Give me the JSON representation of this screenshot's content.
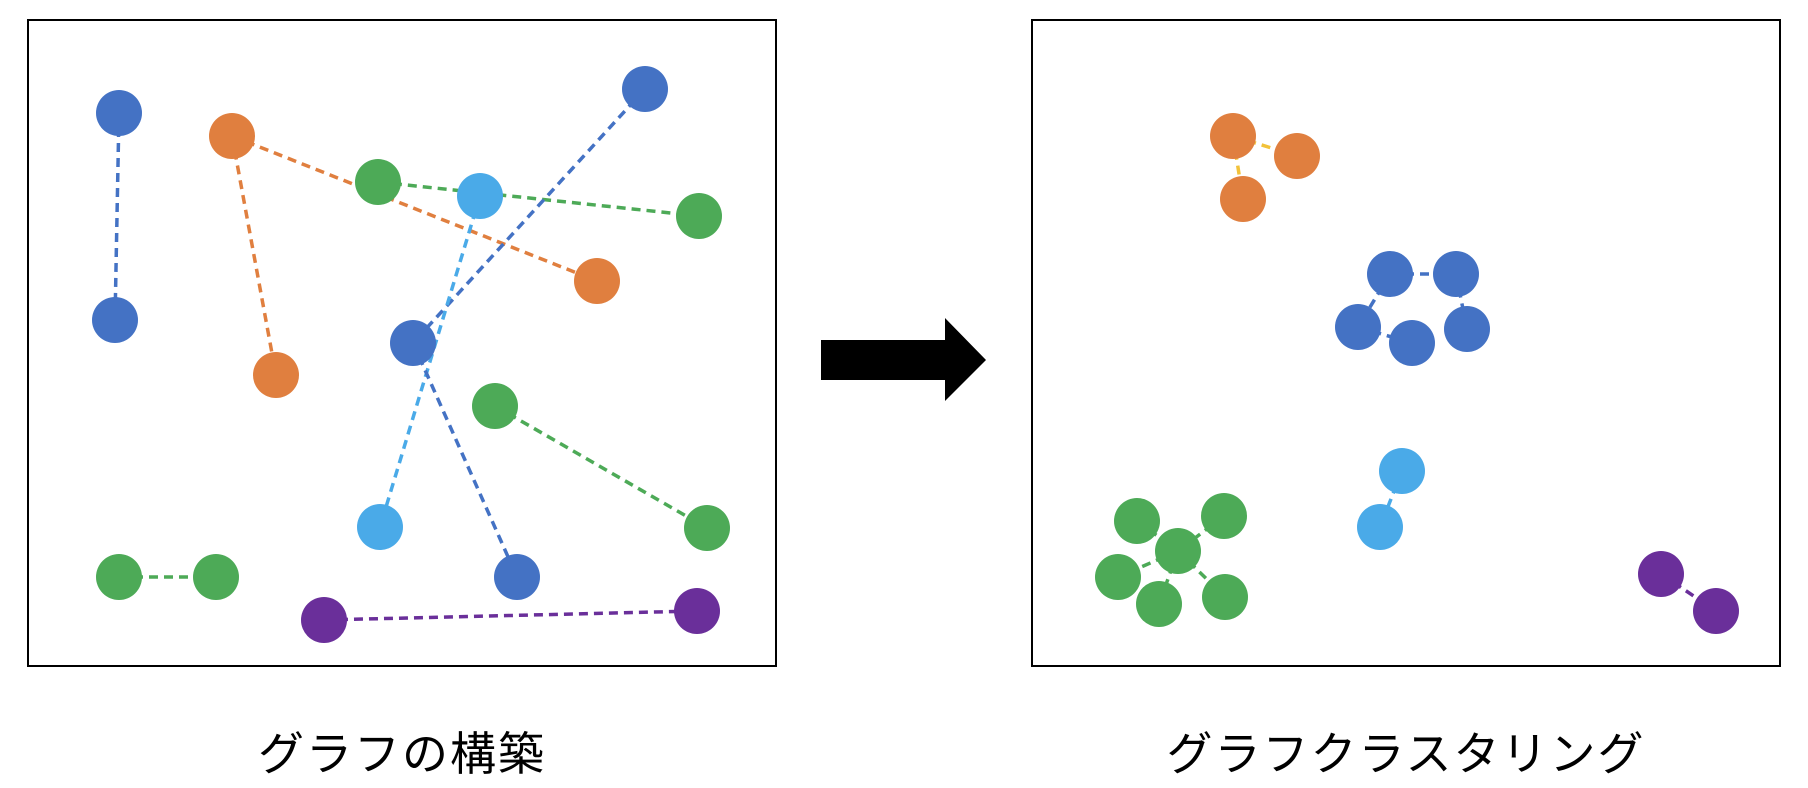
{
  "captions": {
    "left": "グラフの構築",
    "right": "グラフクラスタリング"
  },
  "colors": {
    "blue": "#4472C4",
    "orange": "#E07F3F",
    "green": "#4DAA57",
    "light_blue": "#4AAAE8",
    "purple": "#6A2F9A",
    "yellow_edge": "#F2C23A",
    "frame": "#000000",
    "arrow": "#000000"
  },
  "panels": [
    {
      "id": "construction",
      "nodes": [
        {
          "id": "b1",
          "color": "blue"
        },
        {
          "id": "b2",
          "color": "blue"
        },
        {
          "id": "o1",
          "color": "orange"
        },
        {
          "id": "o2",
          "color": "orange"
        },
        {
          "id": "g1",
          "color": "green"
        },
        {
          "id": "lb1",
          "color": "light_blue"
        },
        {
          "id": "b3",
          "color": "blue"
        },
        {
          "id": "g2",
          "color": "green"
        },
        {
          "id": "o3",
          "color": "orange"
        },
        {
          "id": "b4",
          "color": "blue"
        },
        {
          "id": "g3",
          "color": "green"
        },
        {
          "id": "lb2",
          "color": "light_blue"
        },
        {
          "id": "g4",
          "color": "green"
        },
        {
          "id": "g5",
          "color": "green"
        },
        {
          "id": "g6",
          "color": "green"
        },
        {
          "id": "b5",
          "color": "blue"
        },
        {
          "id": "p1",
          "color": "purple"
        },
        {
          "id": "p2",
          "color": "purple"
        }
      ],
      "edges": [
        {
          "from": "b1",
          "to": "b2",
          "color": "blue"
        },
        {
          "from": "o1",
          "to": "o2",
          "color": "orange"
        },
        {
          "from": "o1",
          "to": "o3",
          "color": "orange"
        },
        {
          "from": "g1",
          "to": "g2",
          "color": "green"
        },
        {
          "from": "b3",
          "to": "b4",
          "color": "blue"
        },
        {
          "from": "lb1",
          "to": "lb2",
          "color": "light_blue"
        },
        {
          "from": "b4",
          "to": "b5",
          "color": "blue"
        },
        {
          "from": "g3",
          "to": "g4",
          "color": "green"
        },
        {
          "from": "g5",
          "to": "g6",
          "color": "green"
        },
        {
          "from": "p1",
          "to": "p2",
          "color": "purple"
        }
      ]
    },
    {
      "id": "clustering",
      "nodes": [
        {
          "id": "co1",
          "color": "orange"
        },
        {
          "id": "co2",
          "color": "orange"
        },
        {
          "id": "co3",
          "color": "orange"
        },
        {
          "id": "cb1",
          "color": "blue"
        },
        {
          "id": "cb2",
          "color": "blue"
        },
        {
          "id": "cb3",
          "color": "blue"
        },
        {
          "id": "cb4",
          "color": "blue"
        },
        {
          "id": "cb5",
          "color": "blue"
        },
        {
          "id": "clb1",
          "color": "light_blue"
        },
        {
          "id": "clb2",
          "color": "light_blue"
        },
        {
          "id": "cg1",
          "color": "green"
        },
        {
          "id": "cg2",
          "color": "green"
        },
        {
          "id": "cg3",
          "color": "green"
        },
        {
          "id": "cg4",
          "color": "green"
        },
        {
          "id": "cg5",
          "color": "green"
        },
        {
          "id": "cg6",
          "color": "green"
        },
        {
          "id": "cp1",
          "color": "purple"
        },
        {
          "id": "cp2",
          "color": "purple"
        }
      ],
      "edges": [
        {
          "from": "co1",
          "to": "co2",
          "color": "yellow_edge"
        },
        {
          "from": "co1",
          "to": "co3",
          "color": "yellow_edge"
        },
        {
          "from": "cb1",
          "to": "cb2",
          "color": "blue"
        },
        {
          "from": "cb1",
          "to": "cb4",
          "color": "blue"
        },
        {
          "from": "cb2",
          "to": "cb3",
          "color": "blue"
        },
        {
          "from": "cb4",
          "to": "cb5",
          "color": "blue"
        },
        {
          "from": "clb1",
          "to": "clb2",
          "color": "light_blue"
        },
        {
          "from": "cg1",
          "to": "cg3",
          "color": "green"
        },
        {
          "from": "cg2",
          "to": "cg3",
          "color": "green"
        },
        {
          "from": "cg3",
          "to": "cg4",
          "color": "green"
        },
        {
          "from": "cg3",
          "to": "cg5",
          "color": "green"
        },
        {
          "from": "cg3",
          "to": "cg6",
          "color": "green"
        },
        {
          "from": "cp1",
          "to": "cp2",
          "color": "purple"
        }
      ]
    }
  ]
}
